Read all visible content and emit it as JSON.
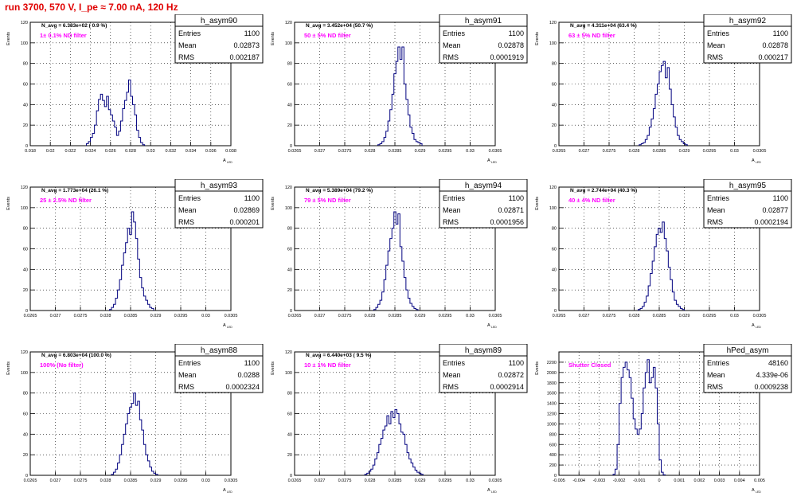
{
  "header": {
    "title": "run 3700,   570 V, I_pe ≈ 7.00 nA, 120 Hz"
  },
  "colors": {
    "histogram_line": "#00007f",
    "filter_label": "#ff00ff",
    "title": "#e00000",
    "grid": "#000000"
  },
  "chart_data": [
    {
      "type": "histogram",
      "name": "h_asym90",
      "navg": "N_avg = 6.383e+02 ( 0.9 %)",
      "label": "1± 0.1% ND filter",
      "stats": {
        "entries": "1100",
        "mean": "0.02873",
        "rms": "0.002187"
      },
      "stats_labels": [
        "Entries",
        "Mean",
        "RMS"
      ],
      "xlabel": "A_LED",
      "ylabel": "Events",
      "xlim": [
        0.018,
        0.038
      ],
      "ylim": [
        0,
        120
      ],
      "xticks": [
        "0.018",
        "0.02",
        "0.022",
        "0.024",
        "0.026",
        "0.028",
        "0.03",
        "0.032",
        "0.034",
        "0.036",
        "0.038"
      ],
      "yticks": [
        "0",
        "20",
        "40",
        "60",
        "80",
        "100",
        "120"
      ],
      "bins": {
        "start": 0.0236,
        "width": 0.0002,
        "values": [
          2,
          4,
          8,
          12,
          20,
          34,
          45,
          50,
          44,
          38,
          48,
          35,
          30,
          24,
          18,
          10,
          14,
          24,
          36,
          44,
          52,
          64,
          48,
          40,
          30,
          15,
          8,
          3,
          1
        ]
      }
    },
    {
      "type": "histogram",
      "name": "h_asym91",
      "navg": "N_avg = 3.452e+04 (50.7 %)",
      "label": "50 ± 5% ND filter",
      "stats": {
        "entries": "1100",
        "mean": "0.02878",
        "rms": "0.0001919"
      },
      "stats_labels": [
        "Entries",
        "Mean",
        "RMS"
      ],
      "xlabel": "A_LED",
      "ylabel": "Events",
      "xlim": [
        0.0265,
        0.0305
      ],
      "ylim": [
        0,
        120
      ],
      "xticks": [
        "0.0265",
        "0.027",
        "0.0275",
        "0.028",
        "0.0285",
        "0.029",
        "0.0295",
        "0.03",
        "0.0305"
      ],
      "yticks": [
        "0",
        "20",
        "40",
        "60",
        "80",
        "100",
        "120"
      ],
      "bins": {
        "start": 0.02816,
        "width": 4e-05,
        "values": [
          1,
          2,
          4,
          8,
          14,
          24,
          35,
          50,
          70,
          82,
          96,
          84,
          96,
          60,
          45,
          30,
          18,
          12,
          6,
          4,
          3,
          2
        ]
      }
    },
    {
      "type": "histogram",
      "name": "h_asym92",
      "navg": "N_avg = 4.311e+04 (63.4 %)",
      "label": "63 ± 5% ND filter",
      "stats": {
        "entries": "1100",
        "mean": "0.02878",
        "rms": "0.000217"
      },
      "stats_labels": [
        "Entries",
        "Mean",
        "RMS"
      ],
      "xlabel": "A_LED",
      "ylabel": "Events",
      "xlim": [
        0.0265,
        0.0305
      ],
      "ylim": [
        0,
        120
      ],
      "xticks": [
        "0.0265",
        "0.027",
        "0.0275",
        "0.028",
        "0.0285",
        "0.029",
        "0.0295",
        "0.03",
        "0.0305"
      ],
      "yticks": [
        "0",
        "20",
        "40",
        "60",
        "80",
        "100",
        "120"
      ],
      "bins": {
        "start": 0.0281,
        "width": 4e-05,
        "values": [
          1,
          2,
          3,
          6,
          10,
          18,
          26,
          36,
          50,
          60,
          72,
          78,
          82,
          66,
          76,
          55,
          40,
          28,
          18,
          10,
          6,
          4,
          2,
          1
        ]
      }
    },
    {
      "type": "histogram",
      "name": "h_asym93",
      "navg": "N_avg = 1.773e+04 (26.1 %)",
      "label": "25 ± 2.5% ND filter",
      "stats": {
        "entries": "1100",
        "mean": "0.02869",
        "rms": "0.000201"
      },
      "stats_labels": [
        "Entries",
        "Mean",
        "RMS"
      ],
      "xlabel": "A_LED",
      "ylabel": "Events",
      "xlim": [
        0.0265,
        0.0305
      ],
      "ylim": [
        0,
        120
      ],
      "xticks": [
        "0.0265",
        "0.027",
        "0.0275",
        "0.028",
        "0.0285",
        "0.029",
        "0.0295",
        "0.03",
        "0.0305"
      ],
      "yticks": [
        "0",
        "20",
        "40",
        "60",
        "80",
        "100",
        "120"
      ],
      "bins": {
        "start": 0.02808,
        "width": 4e-05,
        "values": [
          1,
          3,
          6,
          12,
          20,
          30,
          44,
          56,
          66,
          80,
          74,
          96,
          86,
          70,
          50,
          32,
          22,
          14,
          10,
          6,
          3,
          2
        ]
      }
    },
    {
      "type": "histogram",
      "name": "h_asym94",
      "navg": "N_avg = 5.389e+04 (79.2 %)",
      "label": "79 ± 5% ND filter",
      "stats": {
        "entries": "1100",
        "mean": "0.02871",
        "rms": "0.0001956"
      },
      "stats_labels": [
        "Entries",
        "Mean",
        "RMS"
      ],
      "xlabel": "A_LED",
      "ylabel": "Events",
      "xlim": [
        0.0265,
        0.0305
      ],
      "ylim": [
        0,
        120
      ],
      "xticks": [
        "0.0265",
        "0.027",
        "0.0275",
        "0.028",
        "0.0285",
        "0.029",
        "0.0295",
        "0.03",
        "0.0305"
      ],
      "yticks": [
        "0",
        "20",
        "40",
        "60",
        "80",
        "100",
        "120"
      ],
      "bins": {
        "start": 0.02808,
        "width": 4e-05,
        "values": [
          1,
          3,
          6,
          10,
          18,
          30,
          44,
          58,
          70,
          80,
          96,
          84,
          94,
          62,
          48,
          32,
          20,
          12,
          7,
          4,
          2,
          1
        ]
      }
    },
    {
      "type": "histogram",
      "name": "h_asym95",
      "navg": "N_avg = 2.744e+04 (40.3 %)",
      "label": "40 ± 4% ND filter",
      "stats": {
        "entries": "1100",
        "mean": "0.02877",
        "rms": "0.0002194"
      },
      "stats_labels": [
        "Entries",
        "Mean",
        "RMS"
      ],
      "xlabel": "A_LED",
      "ylabel": "Events",
      "xlim": [
        0.0265,
        0.0305
      ],
      "ylim": [
        0,
        120
      ],
      "xticks": [
        "0.0265",
        "0.027",
        "0.0275",
        "0.028",
        "0.0285",
        "0.029",
        "0.0295",
        "0.03",
        "0.0305"
      ],
      "yticks": [
        "0",
        "20",
        "40",
        "60",
        "80",
        "100",
        "120"
      ],
      "bins": {
        "start": 0.02808,
        "width": 4e-05,
        "values": [
          1,
          2,
          4,
          8,
          14,
          24,
          36,
          48,
          62,
          74,
          80,
          76,
          86,
          70,
          58,
          42,
          30,
          18,
          10,
          6,
          4,
          2,
          1
        ]
      }
    },
    {
      "type": "histogram",
      "name": "h_asym88",
      "navg": "N_avg = 6.803e+04 (100.0 %)",
      "label": "100% (No filter)",
      "stats": {
        "entries": "1100",
        "mean": "0.0288",
        "rms": "0.0002324"
      },
      "stats_labels": [
        "Entries",
        "Mean",
        "RMS"
      ],
      "xlabel": "A_LED",
      "ylabel": "Events",
      "xlim": [
        0.0265,
        0.0305
      ],
      "ylim": [
        0,
        120
      ],
      "xticks": [
        "0.0265",
        "0.027",
        "0.0275",
        "0.028",
        "0.0285",
        "0.029",
        "0.0295",
        "0.03",
        "0.0305"
      ],
      "yticks": [
        "0",
        "20",
        "40",
        "60",
        "80",
        "100",
        "120"
      ],
      "bins": {
        "start": 0.02812,
        "width": 4e-05,
        "values": [
          1,
          3,
          6,
          12,
          20,
          30,
          40,
          50,
          60,
          66,
          70,
          80,
          68,
          72,
          54,
          44,
          30,
          20,
          14,
          8,
          4,
          2,
          1
        ]
      }
    },
    {
      "type": "histogram",
      "name": "h_asym89",
      "navg": "N_avg = 6.440e+03 ( 9.5 %)",
      "label": "10 ± 1% ND filter",
      "stats": {
        "entries": "1100",
        "mean": "0.02872",
        "rms": "0.0002914"
      },
      "stats_labels": [
        "Entries",
        "Mean",
        "RMS"
      ],
      "xlabel": "A_LED",
      "ylabel": "Events",
      "xlim": [
        0.0265,
        0.0305
      ],
      "ylim": [
        0,
        120
      ],
      "xticks": [
        "0.0265",
        "0.027",
        "0.0275",
        "0.028",
        "0.0285",
        "0.029",
        "0.0295",
        "0.03",
        "0.0305"
      ],
      "yticks": [
        "0",
        "20",
        "40",
        "60",
        "80",
        "100",
        "120"
      ],
      "bins": {
        "start": 0.0279,
        "width": 4e-05,
        "values": [
          1,
          2,
          4,
          6,
          10,
          16,
          22,
          30,
          36,
          44,
          48,
          58,
          50,
          62,
          56,
          64,
          60,
          50,
          42,
          40,
          30,
          22,
          16,
          12,
          8,
          5,
          3,
          2,
          1
        ]
      }
    },
    {
      "type": "histogram",
      "name": "hPed_asym",
      "navg": "",
      "label": "Shutter Closed",
      "stats": {
        "entries": "48160",
        "mean": "4.339e-06",
        "rms": "0.0009238"
      },
      "stats_labels": [
        "Entries",
        "Mean",
        "RMS"
      ],
      "xlabel": "A_LED",
      "ylabel": "Events",
      "xlim": [
        -0.005,
        0.005
      ],
      "ylim": [
        0,
        2400
      ],
      "xticks": [
        "-0.005",
        "-0.004",
        "-0.003",
        "-0.002",
        "-0.001",
        "0",
        "0.001",
        "0.002",
        "0.003",
        "0.004",
        "0.005"
      ],
      "yticks": [
        "0",
        "200",
        "400",
        "600",
        "800",
        "1000",
        "1200",
        "1400",
        "1600",
        "1800",
        "2000",
        "2200"
      ],
      "bins": {
        "start": -0.0023,
        "width": 0.0001,
        "values": [
          20,
          120,
          600,
          1400,
          1900,
          2100,
          2200,
          2050,
          1900,
          1500,
          1100,
          900,
          800,
          900,
          1200,
          1700,
          2000,
          2250,
          1800,
          1900,
          2100,
          1700,
          1000,
          300,
          60,
          10
        ]
      }
    }
  ]
}
